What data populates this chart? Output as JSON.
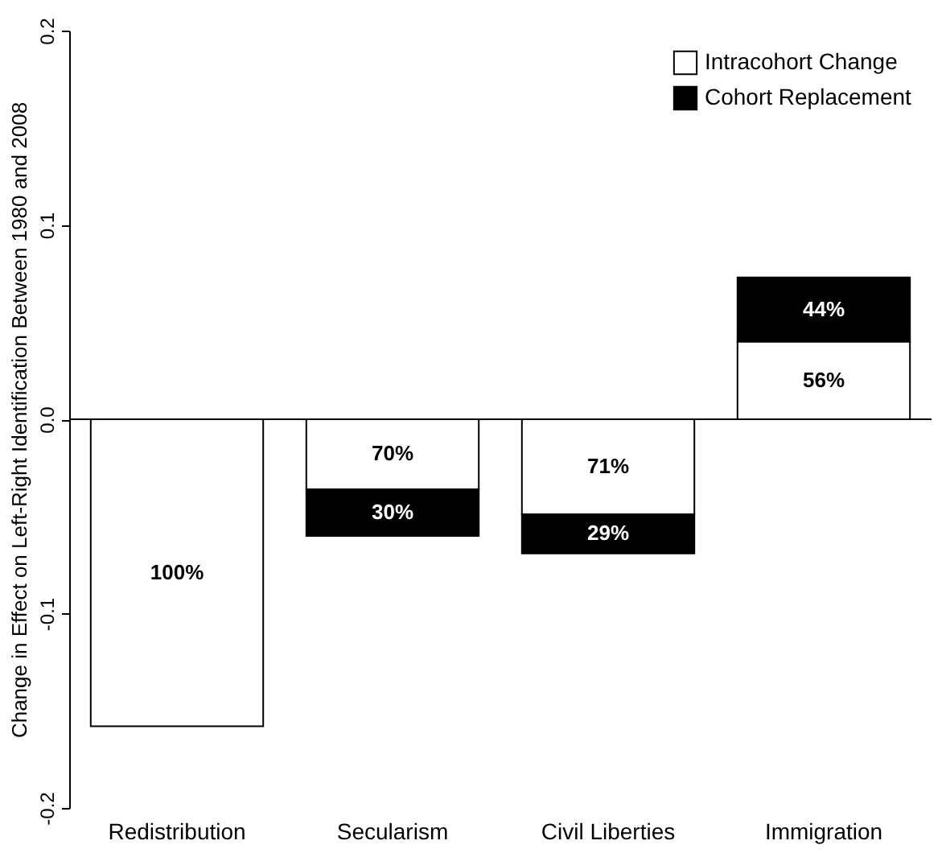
{
  "chart_data": {
    "type": "bar",
    "stacked": true,
    "ylabel": "Change in Effect on Left-Right Identification Between 1980 and 2008",
    "categories": [
      "Redistribution",
      "Secularism",
      "Civil Liberties",
      "Immigration"
    ],
    "series": [
      {
        "name": "Intracohort Change",
        "color": "#ffffff",
        "values": [
          -0.158,
          -0.036,
          -0.049,
          0.04
        ]
      },
      {
        "name": "Cohort Replacement",
        "color": "#000000",
        "values": [
          0,
          -0.024,
          -0.02,
          0.033
        ]
      }
    ],
    "annotations": [
      "100%",
      "70%",
      "30%",
      "71%",
      "29%",
      "56%",
      "44%"
    ],
    "ylim": [
      -0.2,
      0.2
    ],
    "yticks": [
      {
        "value": -0.2,
        "label": "-0.2"
      },
      {
        "value": -0.1,
        "label": "-0.1"
      },
      {
        "value": 0,
        "label": "0.0"
      },
      0.1,
      0.2
    ],
    "ref_lines": [
      {
        "axis": "y",
        "value": 0,
        "label": null
      }
    ],
    "grid": false,
    "legend": "top right"
  }
}
